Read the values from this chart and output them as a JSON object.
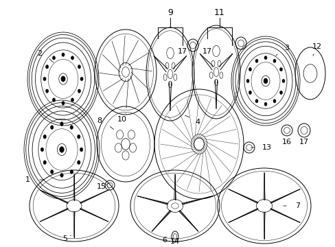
{
  "background_color": "#ffffff",
  "fig_width": 4.89,
  "fig_height": 3.6,
  "dpi": 100,
  "line_color": "#000000",
  "text_color": "#000000",
  "font_size": 8,
  "lw": 0.7
}
